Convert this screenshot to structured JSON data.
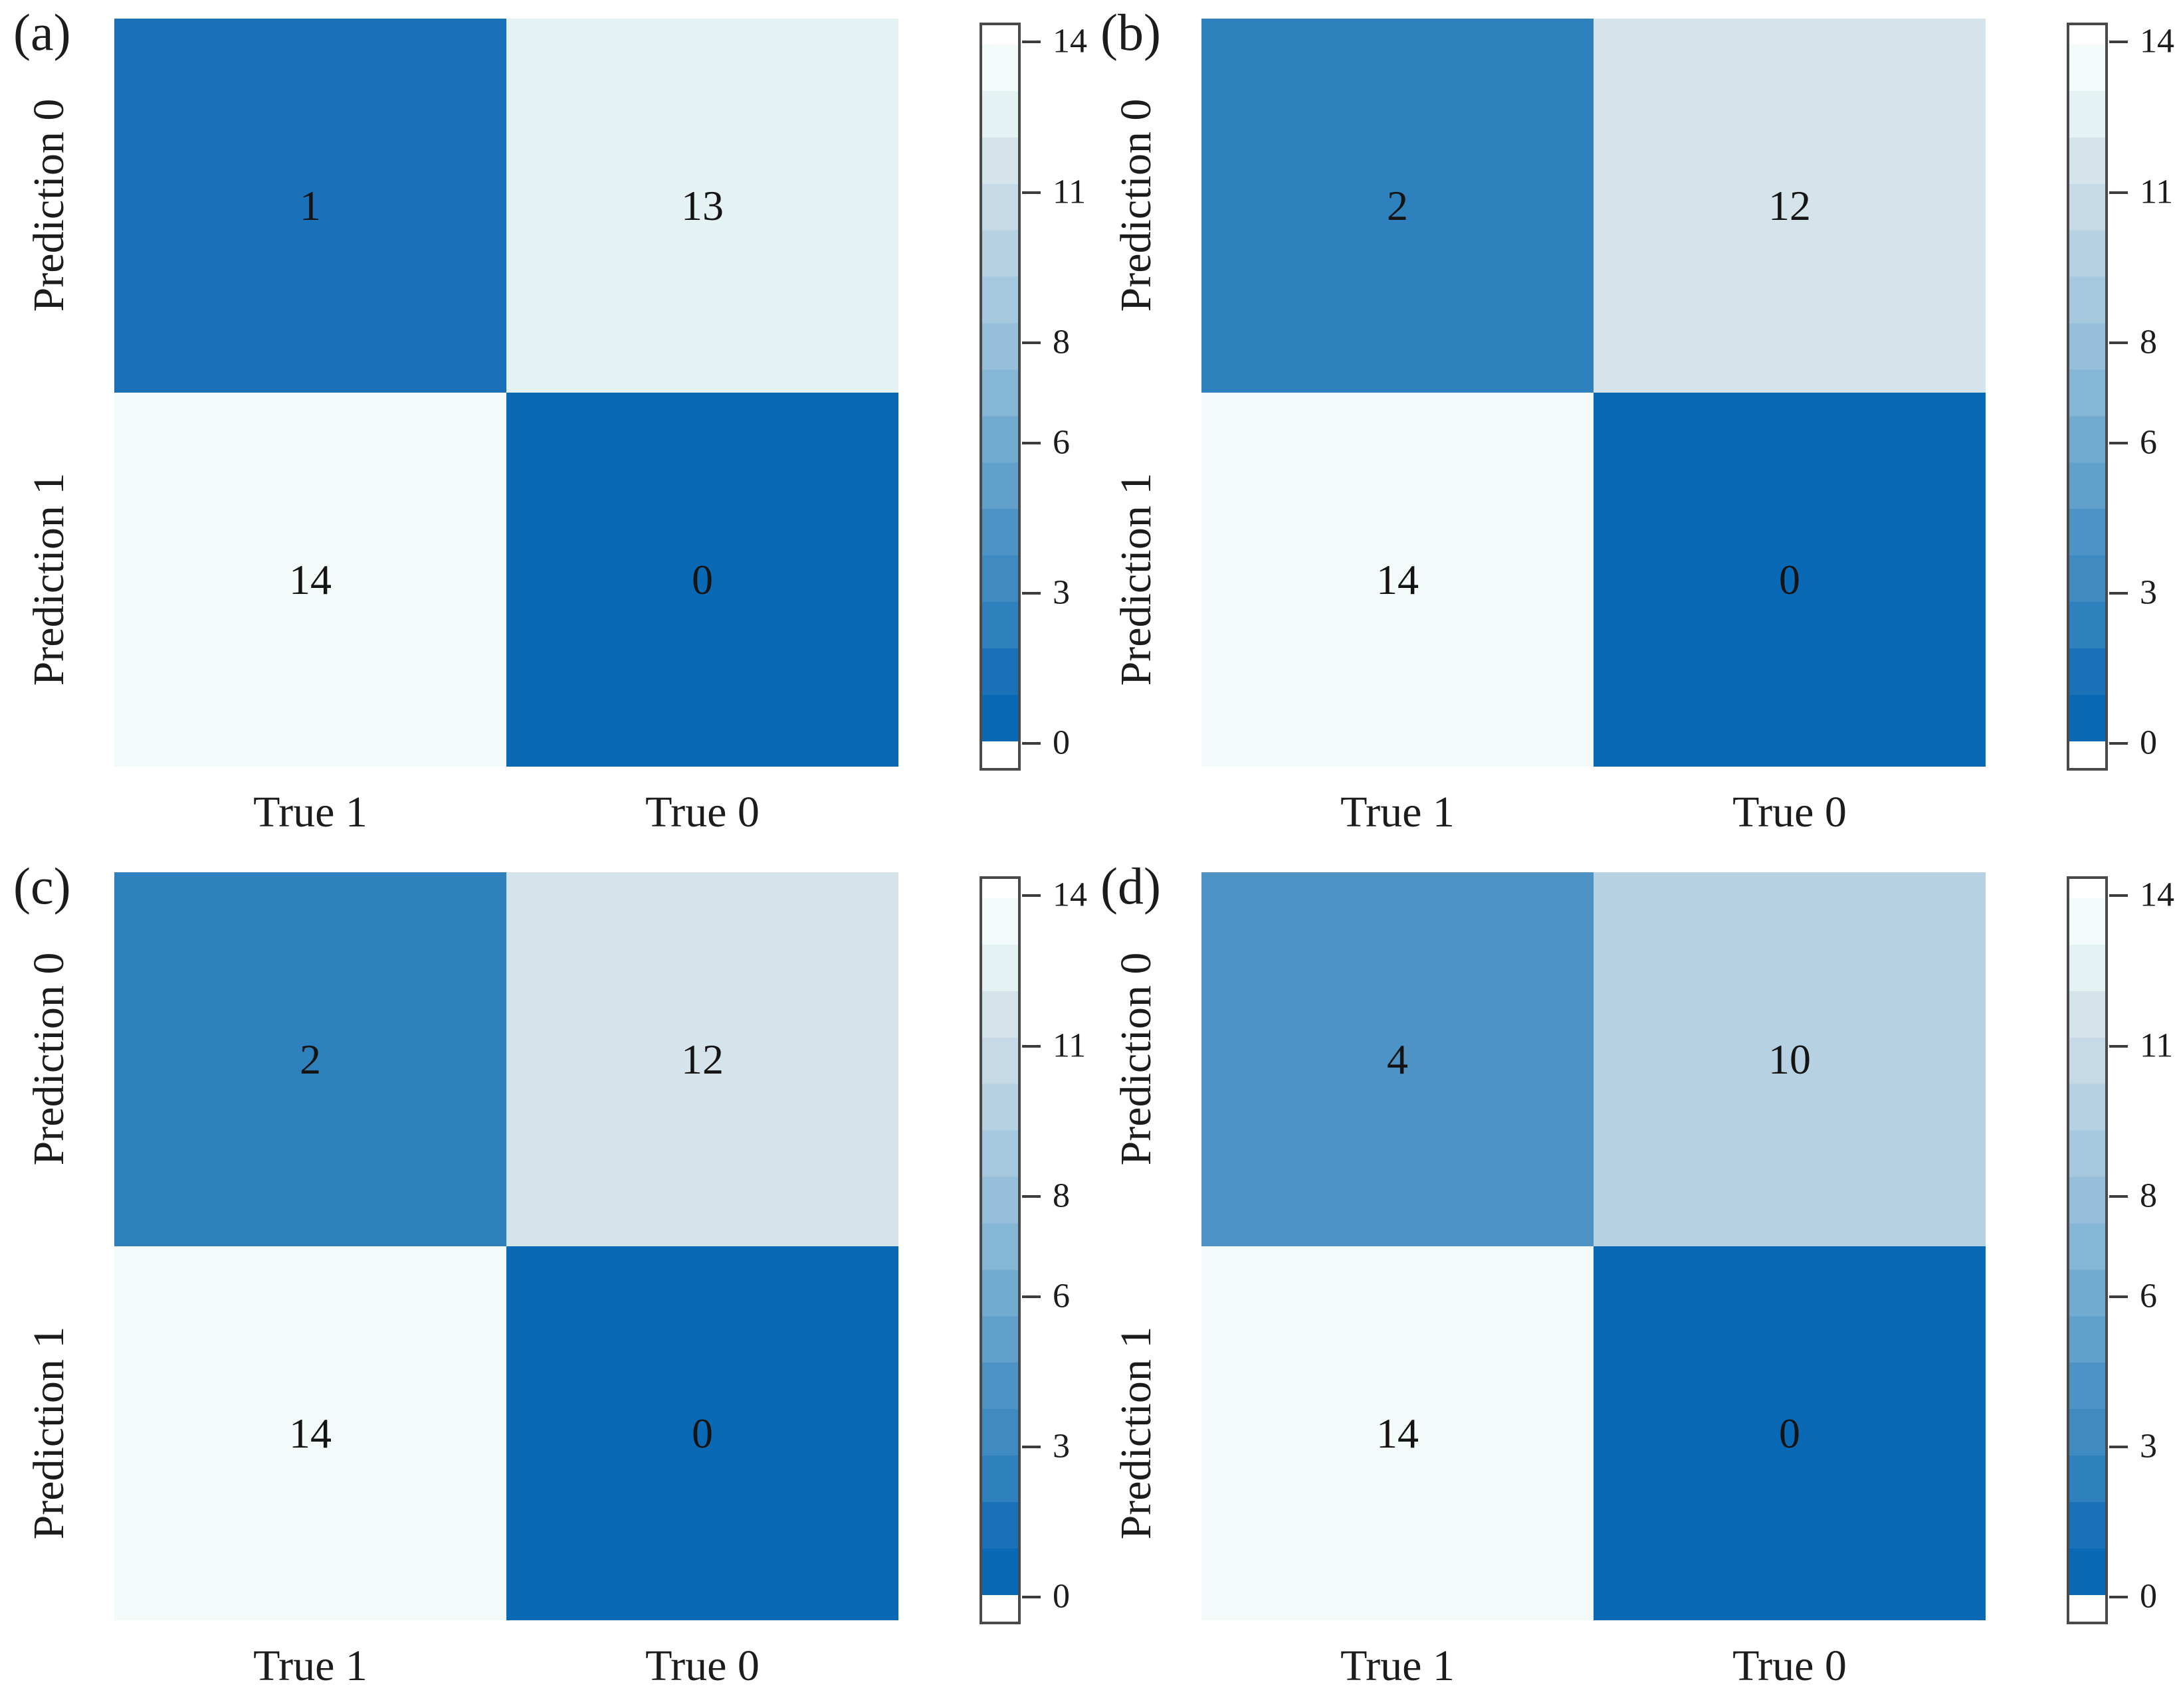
{
  "figure": {
    "background": "#ffffff",
    "text_color": "#1c1c1c",
    "colorbar": {
      "min": 0,
      "max": 14,
      "ticks": [
        14,
        11,
        8,
        6,
        3,
        0
      ],
      "border_color": "#4a4a4a",
      "cap_color": "#ffffff",
      "cap_top_pct": 2.6,
      "cap_bottom_pct": 96.4
    },
    "palette": [
      "#0a69b4",
      "#1a71b8",
      "#2e81bd",
      "#3e8ac1",
      "#4e93c5",
      "#60a0cb",
      "#72abd0",
      "#84b6d6",
      "#95bfda",
      "#a5c8de",
      "#b5d1e2",
      "#c5dae6",
      "#d5e3eb",
      "#e5f2f4",
      "#f3fbfa"
    ],
    "panels": [
      {
        "panel_label": "(a)",
        "row_labels": [
          "Prediction 0",
          "Prediction 1"
        ],
        "col_labels": [
          "True 1",
          "True 0"
        ],
        "matrix": [
          [
            1,
            13
          ],
          [
            14,
            0
          ]
        ]
      },
      {
        "panel_label": "(b)",
        "row_labels": [
          "Prediction 0",
          "Prediction 1"
        ],
        "col_labels": [
          "True 1",
          "True 0"
        ],
        "matrix": [
          [
            2,
            12
          ],
          [
            14,
            0
          ]
        ]
      },
      {
        "panel_label": "(c)",
        "row_labels": [
          "Prediction 0",
          "Prediction 1"
        ],
        "col_labels": [
          "True 1",
          "True 0"
        ],
        "matrix": [
          [
            2,
            12
          ],
          [
            14,
            0
          ]
        ]
      },
      {
        "panel_label": "(d)",
        "row_labels": [
          "Prediction 0",
          "Prediction 1"
        ],
        "col_labels": [
          "True 1",
          "True 0"
        ],
        "matrix": [
          [
            4,
            10
          ],
          [
            14,
            0
          ]
        ]
      }
    ]
  },
  "chart_data": [
    {
      "type": "heatmap",
      "title": "(a)",
      "x_categories": [
        "True 1",
        "True 0"
      ],
      "y_categories": [
        "Prediction 0",
        "Prediction 1"
      ],
      "values": [
        [
          1,
          13
        ],
        [
          14,
          0
        ]
      ],
      "color_range": [
        0,
        14
      ],
      "colorbar_ticks": [
        14,
        11,
        8,
        6,
        3,
        0
      ],
      "colormap": "Blues reversed (0 = dark blue, 14 = white)",
      "legend_position": "right"
    },
    {
      "type": "heatmap",
      "title": "(b)",
      "x_categories": [
        "True 1",
        "True 0"
      ],
      "y_categories": [
        "Prediction 0",
        "Prediction 1"
      ],
      "values": [
        [
          2,
          12
        ],
        [
          14,
          0
        ]
      ],
      "color_range": [
        0,
        14
      ],
      "colorbar_ticks": [
        14,
        11,
        8,
        6,
        3,
        0
      ],
      "colormap": "Blues reversed (0 = dark blue, 14 = white)",
      "legend_position": "right"
    },
    {
      "type": "heatmap",
      "title": "(c)",
      "x_categories": [
        "True 1",
        "True 0"
      ],
      "y_categories": [
        "Prediction 0",
        "Prediction 1"
      ],
      "values": [
        [
          2,
          12
        ],
        [
          14,
          0
        ]
      ],
      "color_range": [
        0,
        14
      ],
      "colorbar_ticks": [
        14,
        11,
        8,
        6,
        3,
        0
      ],
      "colormap": "Blues reversed (0 = dark blue, 14 = white)",
      "legend_position": "right"
    },
    {
      "type": "heatmap",
      "title": "(d)",
      "x_categories": [
        "True 1",
        "True 0"
      ],
      "y_categories": [
        "Prediction 0",
        "Prediction 1"
      ],
      "values": [
        [
          4,
          10
        ],
        [
          14,
          0
        ]
      ],
      "color_range": [
        0,
        14
      ],
      "colorbar_ticks": [
        14,
        11,
        8,
        6,
        3,
        0
      ],
      "colormap": "Blues reversed (0 = dark blue, 14 = white)",
      "legend_position": "right"
    }
  ]
}
